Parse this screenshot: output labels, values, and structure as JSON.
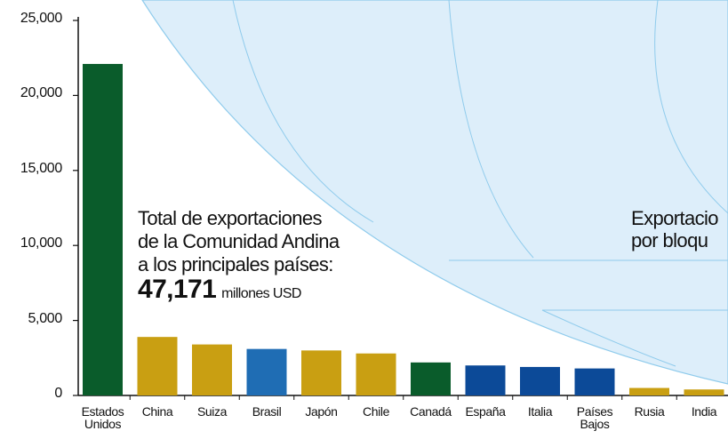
{
  "chart_data": {
    "type": "bar",
    "categories": [
      "Estados Unidos",
      "China",
      "Suiza",
      "Brasil",
      "Japón",
      "Chile",
      "Canadá",
      "España",
      "Italia",
      "Países Bajos",
      "Rusia",
      "India"
    ],
    "values": [
      22100,
      3900,
      3400,
      3100,
      3000,
      2800,
      2200,
      2000,
      1900,
      1800,
      500,
      400
    ],
    "colors": [
      "#0a5c2b",
      "#c99f12",
      "#c99f12",
      "#1f6db4",
      "#c99f12",
      "#c99f12",
      "#0a5c2b",
      "#0c4a98",
      "#0c4a98",
      "#0c4a98",
      "#c99f12",
      "#c99f12"
    ],
    "ylim": [
      0,
      25000
    ],
    "yticks": [
      0,
      {
        "value": 5000,
        "label": "5,000"
      },
      {
        "value": 10000,
        "label": "10,000"
      },
      {
        "value": 15000,
        "label": "15,000"
      },
      {
        "value": 20000,
        "label": "20,000"
      },
      {
        "value": 25000,
        "label": "25,000"
      }
    ],
    "annotation": {
      "lines": [
        "Total de exportaciones",
        "de la Comunidad Andina",
        "a los principales países:"
      ],
      "total": "47,171",
      "unit": "millones USD"
    },
    "side_annotation": {
      "lines": [
        "Exportacio",
        "por bloqu"
      ]
    }
  }
}
